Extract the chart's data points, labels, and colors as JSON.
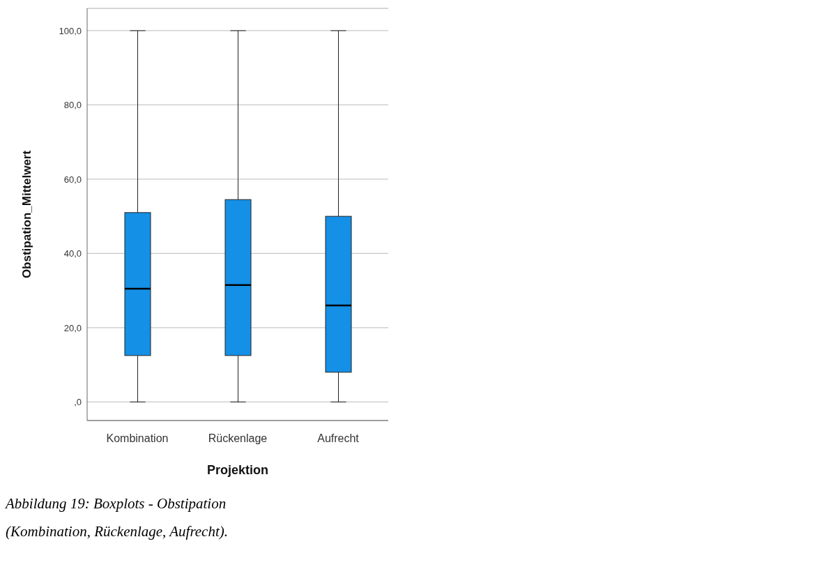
{
  "chart_data": {
    "type": "box",
    "xlabel": "Projektion",
    "ylabel": "Obstipation_Mittelwert",
    "categories": [
      "Kombination",
      "Rückenlage",
      "Aufrecht"
    ],
    "boxes": [
      {
        "low": 0,
        "q1": 12.5,
        "median": 30.5,
        "q3": 51,
        "high": 100
      },
      {
        "low": 0,
        "q1": 12.5,
        "median": 31.5,
        "q3": 54.5,
        "high": 100
      },
      {
        "low": 0,
        "q1": 8,
        "median": 26,
        "q3": 50,
        "high": 100
      }
    ],
    "color": "#1490e6",
    "ylim": [
      -5,
      106
    ],
    "yticks": [
      {
        "value": 0,
        "label": ",0"
      },
      {
        "value": 20,
        "label": "20,0"
      },
      {
        "value": 40,
        "label": "40,0"
      },
      {
        "value": 60,
        "label": "60,0"
      },
      {
        "value": 80,
        "label": "80,0"
      },
      {
        "value": 100,
        "label": "100,0"
      }
    ],
    "grid": "y",
    "legend": false,
    "annotations": [
      "Abbildung 19: Boxplots - Obstipation (Kombination, Rückenlage, Aufrecht)."
    ]
  }
}
